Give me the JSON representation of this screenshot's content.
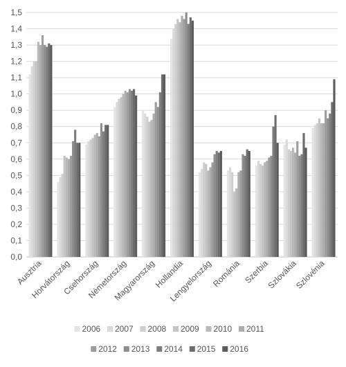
{
  "chart_data": {
    "type": "bar",
    "title": "",
    "xlabel": "",
    "ylabel": "",
    "ylim": [
      0,
      1.5
    ],
    "yticks": [
      "0,0",
      "0,1",
      "0,2",
      "0,3",
      "0,4",
      "0,5",
      "0,6",
      "0,7",
      "0,8",
      "0,9",
      "1,0",
      "1,1",
      "1,2",
      "1,3",
      "1,4",
      "1,5"
    ],
    "grid": true,
    "legend_position": "bottom",
    "categories": [
      "Ausztria",
      "Horvátország",
      "Csehország",
      "Németország",
      "Magyarország",
      "Hollandia",
      "Lengyelország",
      "Románia",
      "Szerbia",
      "Szlovákia",
      "Szlovénia"
    ],
    "series": [
      {
        "name": "2006",
        "color": "#e4e4e4",
        "values": [
          1.12,
          0.46,
          0.69,
          0.92,
          0.9,
          1.34,
          0.52,
          0.53,
          0.56,
          0.69,
          0.79
        ]
      },
      {
        "name": "2007",
        "color": "#dadada",
        "values": [
          1.17,
          0.49,
          0.71,
          0.95,
          0.88,
          1.4,
          0.54,
          0.55,
          0.59,
          0.72,
          0.81
        ]
      },
      {
        "name": "2008",
        "color": "#cfcfcf",
        "values": [
          1.2,
          0.51,
          0.72,
          0.97,
          0.86,
          1.43,
          0.58,
          0.52,
          0.57,
          0.66,
          0.82
        ]
      },
      {
        "name": "2009",
        "color": "#c4c4c4",
        "values": [
          1.2,
          0.62,
          0.73,
          0.98,
          0.83,
          1.46,
          0.57,
          0.4,
          0.56,
          0.65,
          0.85
        ]
      },
      {
        "name": "2010",
        "color": "#b8b8b8",
        "values": [
          1.32,
          0.61,
          0.75,
          1.0,
          0.84,
          1.44,
          0.53,
          0.42,
          0.58,
          0.67,
          0.82
        ]
      },
      {
        "name": "2011",
        "color": "#adadad",
        "values": [
          1.3,
          0.6,
          0.76,
          1.02,
          0.88,
          1.48,
          0.55,
          0.52,
          0.59,
          0.64,
          0.82
        ]
      },
      {
        "name": "2012",
        "color": "#9d9d9d",
        "values": [
          1.36,
          0.62,
          0.74,
          1.01,
          0.95,
          1.46,
          0.58,
          0.53,
          0.61,
          0.71,
          0.9
        ]
      },
      {
        "name": "2013",
        "color": "#8e8e8e",
        "values": [
          1.3,
          0.71,
          0.82,
          1.03,
          0.92,
          1.5,
          0.63,
          0.63,
          0.62,
          0.62,
          0.85
        ]
      },
      {
        "name": "2014",
        "color": "#7e7e7e",
        "values": [
          1.29,
          0.78,
          0.77,
          1.02,
          1.01,
          1.43,
          0.65,
          0.62,
          0.8,
          0.63,
          0.88
        ]
      },
      {
        "name": "2015",
        "color": "#6d6d6d",
        "values": [
          1.31,
          0.7,
          0.81,
          1.03,
          1.12,
          1.47,
          0.64,
          0.66,
          0.87,
          0.76,
          0.95
        ]
      },
      {
        "name": "2016",
        "color": "#5b5b5b",
        "values": [
          1.3,
          0.7,
          0.81,
          0.99,
          1.12,
          1.45,
          0.65,
          0.65,
          0.7,
          0.67,
          1.09
        ]
      }
    ]
  }
}
